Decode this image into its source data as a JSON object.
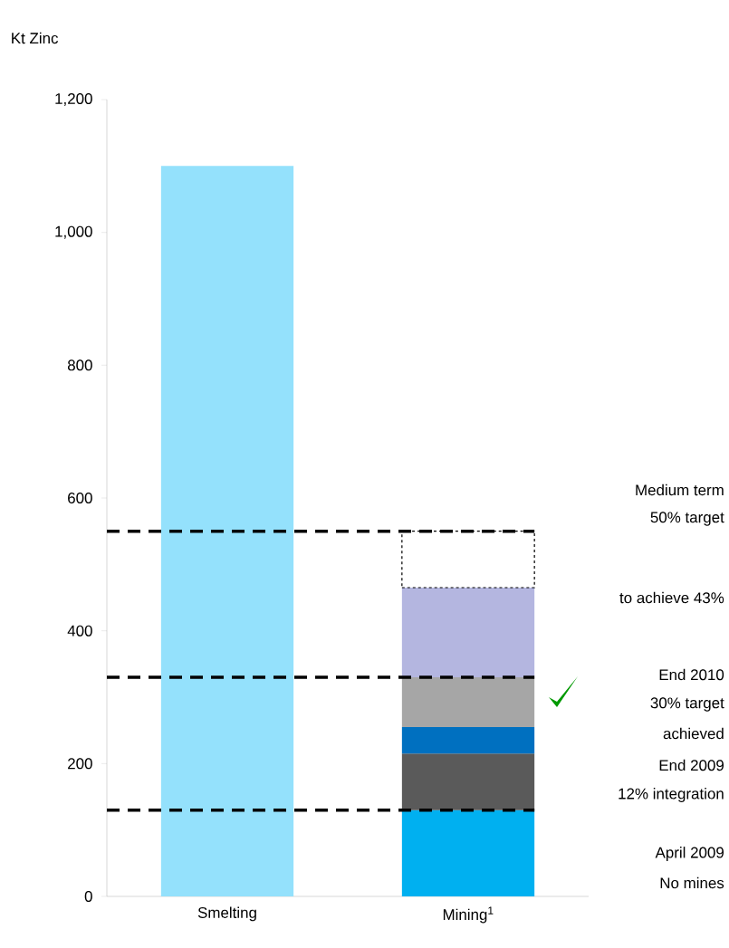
{
  "chart_data": {
    "type": "bar",
    "stacked": true,
    "ylabel": "Kt Zinc",
    "categories": [
      "Smelting",
      "Mining$^{1}$"
    ],
    "series": [
      {
        "color": "#94e1fc",
        "values": [
          1100,
          null
        ]
      },
      {
        "color": "#00b0f0",
        "values": [
          null,
          130
        ]
      },
      {
        "color": "#5a5a5a",
        "values": [
          null,
          85
        ]
      },
      {
        "color": "#0070c0",
        "values": [
          null,
          40
        ]
      },
      {
        "color": "#a6a6a6",
        "values": [
          null,
          75
        ]
      },
      {
        "color": "#b4b6e0",
        "values": [
          null,
          135
        ]
      },
      {
        "color": "#ffffff",
        "line_style": "dashed",
        "values": [
          null,
          85
        ]
      }
    ],
    "ylim": [
      0,
      1200
    ],
    "yticks": [
      0,
      200,
      400,
      600,
      800,
      {
        "value": 1000,
        "label": "1,000"
      },
      {
        "value": 1200,
        "label": "1,200"
      }
    ],
    "grid": false,
    "ref_lines": [
      {
        "axis": "y",
        "value": 550,
        "color": "#000000",
        "line_style": "dashed"
      },
      {
        "axis": "y",
        "value": 330,
        "color": "#000000",
        "line_style": "dashed"
      },
      {
        "axis": "y",
        "value": 130,
        "color": "#000000",
        "line_style": "dashed"
      }
    ],
    "annotations": [
      "Medium term",
      "50% target",
      "to achieve 43%",
      "End 2010",
      "30% target",
      "achieved",
      "End 2009",
      "12% integration",
      "April 2009",
      "No mines"
    ]
  }
}
